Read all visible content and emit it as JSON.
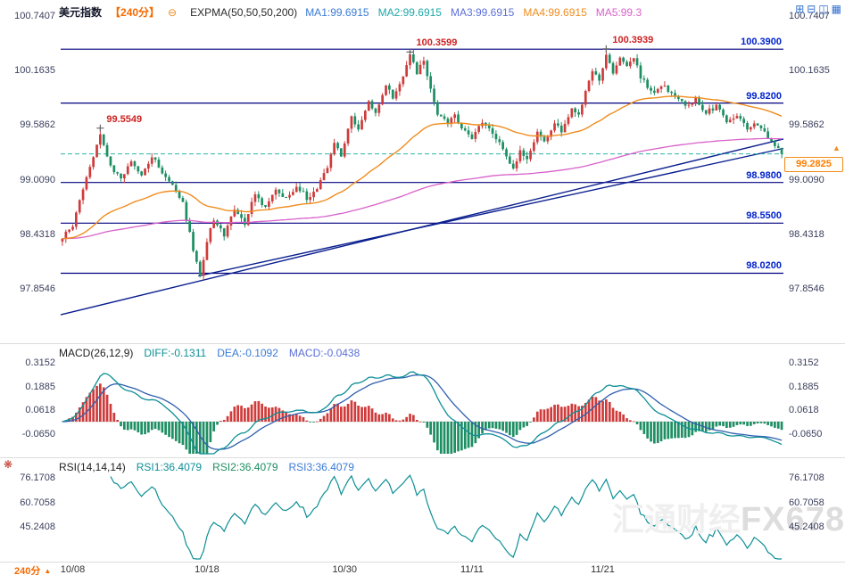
{
  "header": {
    "symbol": "美元指数",
    "timeframe": "【240分】",
    "collapse_icon": "⊖",
    "indicator": "EXPMA(50,50,50,200)",
    "ma_values": [
      {
        "label": "MA1:99.6915",
        "color": "#3a7bd5"
      },
      {
        "label": "MA2:99.6915",
        "color": "#1fa8a8"
      },
      {
        "label": "MA3:99.6915",
        "color": "#5b6fd8"
      },
      {
        "label": "MA4:99.6915",
        "color": "#f08c1e"
      },
      {
        "label": "MA5:99.3",
        "color": "#d861c9"
      }
    ],
    "window_icons": [
      {
        "name": "layout-single-icon",
        "glyph": "⊞"
      },
      {
        "name": "layout-split-icon",
        "glyph": "⊟"
      },
      {
        "name": "layout-cols-icon",
        "glyph": "◫"
      },
      {
        "name": "layout-grid-icon",
        "glyph": "▦"
      }
    ]
  },
  "main_chart": {
    "y_axis_labels": [
      "100.7407",
      "100.1635",
      "99.5862",
      "99.0090",
      "98.4318",
      "97.8546"
    ],
    "levels": [
      {
        "label": "100.3900",
        "price": 100.39
      },
      {
        "label": "99.8200",
        "price": 99.82
      },
      {
        "label": "98.9800",
        "price": 98.98
      },
      {
        "label": "98.5500",
        "price": 98.55
      },
      {
        "label": "98.0200",
        "price": 98.02
      }
    ],
    "current_price": {
      "label": "99.2825",
      "price": 99.2825
    },
    "annotations": [
      {
        "text": "99.5549",
        "bar": 11,
        "price": 99.5549
      },
      {
        "text": "100.3599",
        "bar": 101,
        "price": 100.3599
      },
      {
        "text": "100.3939",
        "bar": 158,
        "price": 100.3939
      }
    ],
    "trendlines": [
      {
        "from_bar": 0,
        "from_price": 97.58,
        "to_bar": 210,
        "to_price": 99.44
      },
      {
        "from_bar": 40,
        "from_price": 97.99,
        "to_bar": 210,
        "to_price": 99.34
      }
    ]
  },
  "macd": {
    "title": "MACD(26,12,9)",
    "values": [
      {
        "label": "DIFF:-0.1311",
        "color": "#0d8f96"
      },
      {
        "label": "DEA:-0.1092",
        "color": "#3a7bd5"
      },
      {
        "label": "MACD:-0.0438",
        "color": "#5b6fd8"
      }
    ],
    "y_axis_labels": [
      "0.3152",
      "0.1885",
      "0.0618",
      "-0.0650"
    ]
  },
  "rsi": {
    "title": "RSI(14,14,14)",
    "values": [
      {
        "label": "RSI1:36.4079",
        "color": "#0d8f96"
      },
      {
        "label": "RSI2:36.4079",
        "color": "#1e8e63"
      },
      {
        "label": "RSI3:36.4079",
        "color": "#3a7bd5"
      }
    ],
    "y_axis_labels": [
      "76.1708",
      "60.7058",
      "45.2408"
    ]
  },
  "x_axis": {
    "timeframe_label": "240分",
    "expand_icon": "▲",
    "dates": [
      {
        "label": "10/08",
        "bar": 3
      },
      {
        "label": "10/18",
        "bar": 42
      },
      {
        "label": "10/30",
        "bar": 82
      },
      {
        "label": "11/11",
        "bar": 119
      },
      {
        "label": "11/21",
        "bar": 157
      }
    ]
  },
  "watermark": {
    "cn": "汇通财经",
    "en": "FX678"
  },
  "colors": {
    "up": "#cf3b3b",
    "down": "#1e8e63",
    "ema_fast": "#f08c1e",
    "ema_slow": "#d861c9",
    "trendline": "#0a1f8f",
    "level_line": "#000080",
    "level_label": "#0022cc",
    "dashed": "#2ab6ad",
    "annotation": "#cc2222",
    "axis_text": "#3a3f5c",
    "macd_diff": "#0d8f96",
    "macd_dea": "#2f5fae",
    "rsi_line": "#0d8f96",
    "accent_orange": "#f08c1e"
  },
  "chart_data": [
    {
      "type": "candlestick",
      "title": "美元指数 240分",
      "bars": 210,
      "ylim": [
        97.58,
        100.7407
      ],
      "yticks": [
        100.7407,
        100.1635,
        99.5862,
        99.009,
        98.4318,
        97.8546
      ],
      "x_tick_labels": [
        "10/08",
        "10/18",
        "10/30",
        "11/11",
        "11/21"
      ],
      "levels": [
        100.39,
        99.82,
        98.98,
        98.55,
        98.02
      ],
      "current": 99.2825,
      "overlays": [
        {
          "name": "EXPMA50",
          "color": "#f08c1e"
        },
        {
          "name": "EXPMA200",
          "color": "#d861c9"
        }
      ],
      "price_anchors": [
        [
          0,
          98.4
        ],
        [
          3,
          98.52
        ],
        [
          5,
          98.8
        ],
        [
          8,
          99.15
        ],
        [
          11,
          99.5
        ],
        [
          14,
          99.15
        ],
        [
          17,
          99.0
        ],
        [
          20,
          99.2
        ],
        [
          23,
          99.05
        ],
        [
          26,
          99.25
        ],
        [
          29,
          99.1
        ],
        [
          32,
          98.95
        ],
        [
          35,
          98.75
        ],
        [
          38,
          98.28
        ],
        [
          40,
          97.98
        ],
        [
          42,
          98.35
        ],
        [
          44,
          98.6
        ],
        [
          47,
          98.42
        ],
        [
          50,
          98.7
        ],
        [
          53,
          98.55
        ],
        [
          56,
          98.85
        ],
        [
          59,
          98.72
        ],
        [
          62,
          98.92
        ],
        [
          65,
          98.8
        ],
        [
          68,
          98.95
        ],
        [
          71,
          98.82
        ],
        [
          74,
          98.9
        ],
        [
          77,
          99.15
        ],
        [
          79,
          99.42
        ],
        [
          81,
          99.25
        ],
        [
          84,
          99.68
        ],
        [
          86,
          99.55
        ],
        [
          89,
          99.85
        ],
        [
          91,
          99.7
        ],
        [
          94,
          100.0
        ],
        [
          96,
          99.88
        ],
        [
          99,
          100.12
        ],
        [
          101,
          100.33
        ],
        [
          103,
          100.15
        ],
        [
          105,
          100.26
        ],
        [
          107,
          99.95
        ],
        [
          109,
          99.72
        ],
        [
          112,
          99.6
        ],
        [
          114,
          99.68
        ],
        [
          117,
          99.52
        ],
        [
          119,
          99.45
        ],
        [
          121,
          99.6
        ],
        [
          124,
          99.56
        ],
        [
          126,
          99.44
        ],
        [
          129,
          99.28
        ],
        [
          131,
          99.12
        ],
        [
          133,
          99.3
        ],
        [
          135,
          99.25
        ],
        [
          138,
          99.5
        ],
        [
          140,
          99.42
        ],
        [
          143,
          99.6
        ],
        [
          145,
          99.52
        ],
        [
          148,
          99.78
        ],
        [
          150,
          99.68
        ],
        [
          152,
          99.95
        ],
        [
          154,
          100.15
        ],
        [
          156,
          100.05
        ],
        [
          158,
          100.35
        ],
        [
          160,
          100.12
        ],
        [
          162,
          100.28
        ],
        [
          164,
          100.2
        ],
        [
          166,
          100.3
        ],
        [
          168,
          100.1
        ],
        [
          170,
          100.0
        ],
        [
          172,
          99.92
        ],
        [
          174,
          100.02
        ],
        [
          176,
          99.95
        ],
        [
          178,
          99.88
        ],
        [
          181,
          99.8
        ],
        [
          184,
          99.86
        ],
        [
          187,
          99.72
        ],
        [
          190,
          99.78
        ],
        [
          193,
          99.64
        ],
        [
          196,
          99.7
        ],
        [
          199,
          99.56
        ],
        [
          202,
          99.6
        ],
        [
          205,
          99.45
        ],
        [
          207,
          99.38
        ],
        [
          209,
          99.2825
        ]
      ]
    },
    {
      "type": "bar",
      "name": "MACD(26,12,9)",
      "latest": {
        "diff": -0.1311,
        "dea": -0.1092,
        "macd": -0.0438
      },
      "yticks": [
        0.3152,
        0.1885,
        0.0618,
        -0.065
      ],
      "derived_from": "price_anchors (DIFF=EMA12-EMA26, DEA=EMA9(DIFF), MACD=2*(DIFF-DEA))"
    },
    {
      "type": "line",
      "name": "RSI(14,14,14)",
      "latest": 36.4079,
      "yticks": [
        76.1708,
        60.7058,
        45.2408
      ],
      "derived_from": "price_anchors (Wilder RSI 14)"
    }
  ]
}
